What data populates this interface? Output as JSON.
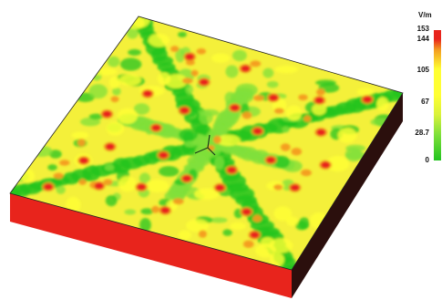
{
  "colorbar": {
    "unit": "V/m",
    "ticks": [
      "153",
      "144",
      "105",
      "67",
      "28.7",
      "0"
    ]
  },
  "colors": {
    "high": "#e8241c",
    "upper": "#f39b20",
    "mid": "#ffff33",
    "lower": "#7fe03a",
    "low": "#22c41f",
    "side_dark": "#2b0f0d"
  }
}
